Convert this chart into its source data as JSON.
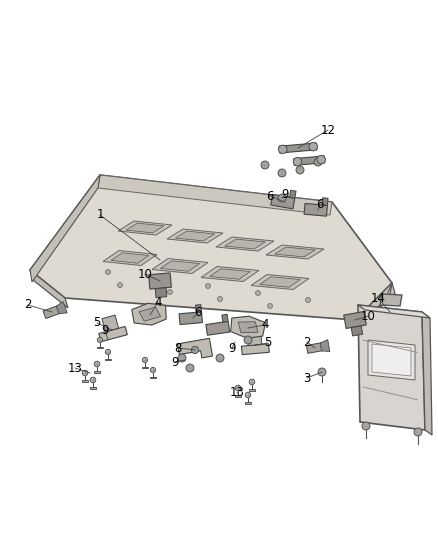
{
  "background_color": "#ffffff",
  "fig_width": 4.38,
  "fig_height": 5.33,
  "dpi": 100,
  "roof_color": "#e8e4dc",
  "roof_edge": "#555555",
  "slot_fill": "#d0ccc4",
  "slot_edge": "#666666",
  "part_fill": "#c0bcb4",
  "part_edge": "#444444",
  "label_color": "#000000",
  "line_color": "#444444"
}
